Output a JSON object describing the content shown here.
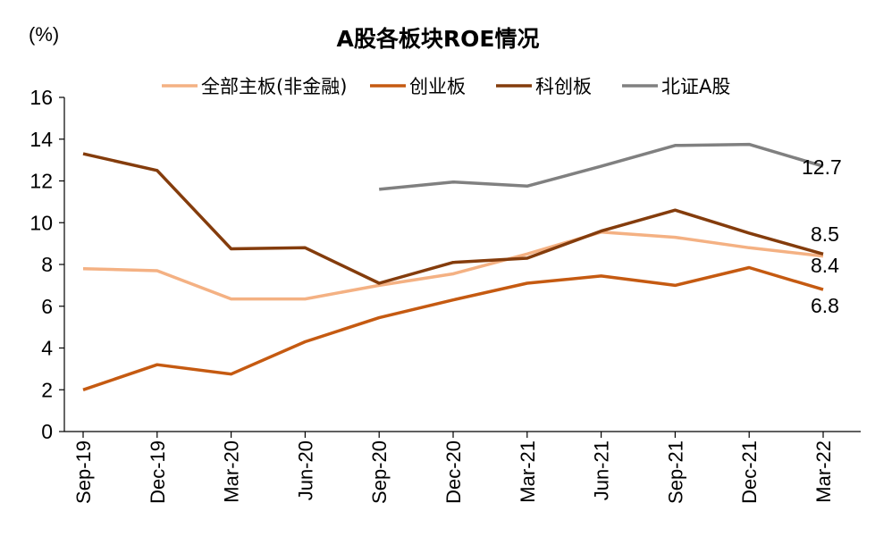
{
  "chart_data": {
    "type": "line",
    "title": "A股各板块ROE情况",
    "unit_label": "(%)",
    "x": [
      "Sep-19",
      "Dec-19",
      "Mar-20",
      "Jun-20",
      "Sep-20",
      "Dec-20",
      "Mar-21",
      "Jun-21",
      "Sep-21",
      "Dec-21",
      "Mar-22"
    ],
    "ylim": [
      0,
      16
    ],
    "yticks": [
      0,
      2,
      4,
      6,
      8,
      10,
      12,
      14,
      16
    ],
    "grid": false,
    "legend_position": "top",
    "series": [
      {
        "name": "全部主板(非金融)",
        "color": "#F4B183",
        "values": [
          7.8,
          7.7,
          6.35,
          6.35,
          7.0,
          7.55,
          8.5,
          9.55,
          9.3,
          8.8,
          8.4
        ],
        "end_label": "8.4"
      },
      {
        "name": "创业板",
        "color": "#C55A11",
        "values": [
          2.0,
          3.2,
          2.75,
          4.3,
          5.45,
          6.3,
          7.1,
          7.45,
          7.0,
          7.85,
          6.8
        ],
        "end_label": "6.8"
      },
      {
        "name": "科创板",
        "color": "#843C0C",
        "values": [
          13.3,
          12.5,
          8.75,
          8.8,
          7.1,
          8.1,
          8.3,
          9.6,
          10.6,
          9.5,
          8.5
        ],
        "end_label": "8.5"
      },
      {
        "name": "北证A股",
        "color": "#808080",
        "values": [
          null,
          null,
          null,
          null,
          11.6,
          11.95,
          11.75,
          12.7,
          13.7,
          13.75,
          12.7
        ],
        "end_label": "12.7"
      }
    ]
  }
}
